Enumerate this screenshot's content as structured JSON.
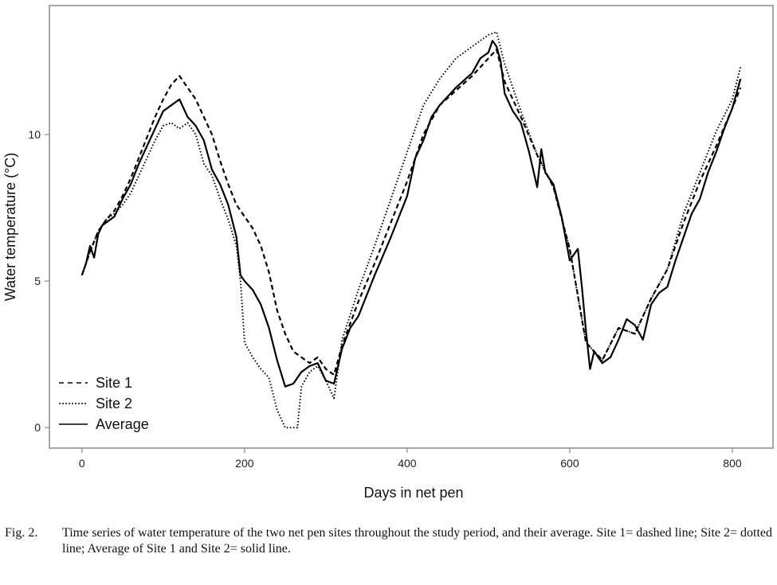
{
  "chart_data": {
    "type": "line",
    "title": "",
    "xlabel": "Days in net pen",
    "ylabel": "Water temperature (°C)",
    "xlim": [
      -40,
      850
    ],
    "ylim": [
      -0.7,
      14.4
    ],
    "xticks": [
      0,
      200,
      400,
      600,
      800
    ],
    "xtick_labels": [
      "0",
      "200",
      "400",
      "600",
      "800"
    ],
    "yticks": [
      0,
      5,
      10
    ],
    "ytick_labels": [
      "0",
      "5",
      "10"
    ],
    "grid": false,
    "legend_position": "bottom-left",
    "series": [
      {
        "name": "Site 1",
        "style": "dashed",
        "color": "#000000",
        "x": [
          0,
          10,
          20,
          30,
          40,
          50,
          60,
          70,
          80,
          90,
          100,
          110,
          120,
          130,
          140,
          150,
          160,
          170,
          180,
          190,
          200,
          210,
          220,
          230,
          240,
          250,
          260,
          270,
          280,
          290,
          300,
          310,
          320,
          340,
          360,
          380,
          400,
          420,
          440,
          460,
          480,
          500,
          510,
          520,
          540,
          560,
          580,
          600,
          620,
          640,
          660,
          680,
          700,
          720,
          740,
          760,
          780,
          800,
          810
        ],
        "values": [
          5.2,
          6.0,
          6.7,
          7.1,
          7.4,
          7.9,
          8.5,
          9.2,
          9.9,
          10.6,
          11.2,
          11.7,
          12.0,
          11.6,
          11.2,
          10.6,
          10.0,
          9.1,
          8.3,
          7.6,
          7.2,
          6.8,
          6.2,
          5.3,
          4.0,
          3.2,
          2.6,
          2.4,
          2.2,
          2.4,
          2.0,
          1.8,
          2.8,
          4.3,
          5.6,
          7.0,
          8.4,
          10.0,
          11.0,
          11.5,
          12.0,
          12.6,
          12.9,
          11.8,
          10.6,
          9.3,
          8.2,
          6.1,
          2.9,
          2.3,
          3.4,
          3.2,
          4.4,
          5.4,
          7.0,
          8.4,
          9.6,
          10.9,
          11.6
        ]
      },
      {
        "name": "Site 2",
        "style": "dotted",
        "color": "#000000",
        "x": [
          0,
          10,
          20,
          30,
          40,
          50,
          60,
          70,
          80,
          90,
          100,
          110,
          120,
          130,
          140,
          150,
          160,
          170,
          180,
          190,
          195,
          200,
          210,
          220,
          230,
          240,
          250,
          260,
          265,
          270,
          280,
          290,
          300,
          310,
          320,
          340,
          360,
          380,
          400,
          420,
          440,
          460,
          480,
          500,
          510,
          520,
          540,
          560,
          580,
          600,
          620,
          640,
          660,
          680,
          700,
          720,
          740,
          760,
          780,
          800,
          810
        ],
        "values": [
          5.2,
          6.0,
          6.7,
          7.1,
          7.3,
          7.6,
          8.0,
          8.6,
          9.2,
          9.8,
          10.3,
          10.4,
          10.2,
          10.4,
          10.0,
          9.0,
          8.6,
          7.8,
          7.1,
          6.2,
          5.0,
          2.9,
          2.4,
          2.0,
          1.7,
          0.6,
          0.0,
          0.0,
          0.0,
          1.4,
          1.9,
          2.1,
          1.6,
          1.0,
          3.0,
          4.7,
          6.2,
          7.8,
          9.4,
          11.0,
          11.9,
          12.6,
          13.0,
          13.4,
          13.5,
          12.4,
          10.8,
          9.3,
          8.2,
          6.1,
          2.9,
          2.3,
          3.4,
          3.2,
          4.4,
          5.4,
          7.3,
          8.7,
          10.1,
          11.2,
          12.3
        ]
      },
      {
        "name": "Average",
        "style": "solid",
        "color": "#000000",
        "x": [
          0,
          5,
          10,
          15,
          20,
          25,
          30,
          40,
          50,
          60,
          70,
          80,
          90,
          100,
          110,
          120,
          130,
          140,
          150,
          160,
          170,
          180,
          190,
          195,
          200,
          210,
          220,
          230,
          240,
          250,
          260,
          270,
          280,
          290,
          300,
          310,
          320,
          330,
          340,
          360,
          380,
          400,
          410,
          420,
          430,
          440,
          460,
          480,
          490,
          500,
          505,
          510,
          515,
          520,
          530,
          540,
          550,
          560,
          565,
          570,
          580,
          590,
          600,
          610,
          615,
          620,
          625,
          630,
          640,
          650,
          660,
          670,
          680,
          690,
          700,
          710,
          720,
          730,
          740,
          750,
          760,
          770,
          780,
          790,
          800,
          810
        ],
        "values": [
          5.2,
          5.6,
          6.2,
          5.8,
          6.6,
          6.9,
          7.0,
          7.2,
          7.8,
          8.3,
          9.0,
          9.6,
          10.2,
          10.8,
          11.0,
          11.2,
          10.6,
          10.3,
          9.8,
          8.8,
          8.3,
          7.6,
          6.5,
          5.2,
          5.0,
          4.7,
          4.2,
          3.4,
          2.3,
          1.4,
          1.5,
          1.9,
          2.1,
          2.2,
          1.6,
          1.5,
          2.7,
          3.4,
          3.8,
          5.2,
          6.5,
          7.9,
          9.2,
          9.8,
          10.6,
          11.0,
          11.6,
          12.1,
          12.6,
          12.8,
          13.2,
          13.0,
          12.5,
          11.4,
          10.8,
          10.4,
          9.4,
          8.2,
          9.5,
          8.7,
          8.3,
          7.2,
          5.7,
          6.1,
          4.8,
          3.3,
          2.0,
          2.6,
          2.2,
          2.4,
          3.0,
          3.7,
          3.5,
          3.0,
          4.2,
          4.6,
          4.8,
          5.7,
          6.5,
          7.3,
          7.8,
          8.7,
          9.4,
          10.2,
          10.9,
          11.9
        ]
      }
    ]
  },
  "legend": {
    "items": [
      "Site 1",
      "Site 2",
      "Average"
    ]
  },
  "caption": {
    "label": "Fig. 2.",
    "text": "Time series of water temperature of the two net pen sites throughout the study period, and their average. Site 1= dashed line; Site 2= dotted line; Average of Site 1 and Site 2= solid line."
  }
}
